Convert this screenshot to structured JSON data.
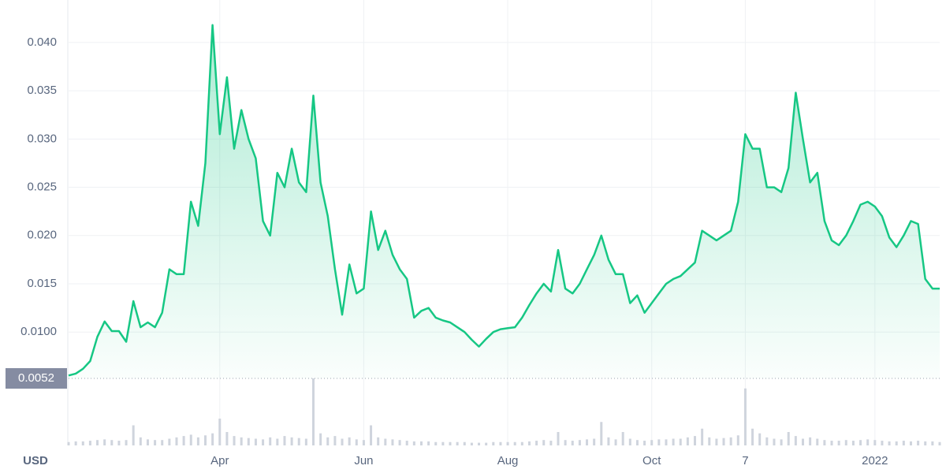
{
  "chart_data": [
    {
      "type": "area",
      "ylabel": "USD",
      "color": "#16c784",
      "categories": [
        null,
        null,
        null,
        null,
        null,
        null,
        null,
        null,
        null,
        null,
        null,
        null,
        null,
        null,
        null,
        null,
        null,
        null,
        null,
        null,
        null,
        "Apr",
        null,
        null,
        null,
        null,
        null,
        null,
        null,
        null,
        null,
        null,
        null,
        null,
        null,
        null,
        null,
        null,
        null,
        null,
        null,
        "Jun",
        null,
        null,
        null,
        null,
        null,
        null,
        null,
        null,
        null,
        null,
        null,
        null,
        null,
        null,
        null,
        null,
        null,
        null,
        null,
        "Aug",
        null,
        null,
        null,
        null,
        null,
        null,
        null,
        null,
        null,
        null,
        null,
        null,
        null,
        null,
        null,
        null,
        null,
        null,
        null,
        "Oct",
        null,
        null,
        null,
        null,
        null,
        null,
        null,
        null,
        null,
        null,
        null,
        null,
        "7",
        null,
        null,
        null,
        null,
        null,
        null,
        null,
        null,
        null,
        null,
        null,
        null,
        null,
        null,
        null,
        null,
        null,
        "2022",
        null,
        null,
        null,
        null,
        null,
        null,
        null,
        null,
        null
      ],
      "values": [
        0.0055,
        0.0057,
        0.0062,
        0.007,
        0.0095,
        0.0111,
        0.0101,
        0.0101,
        0.009,
        0.0132,
        0.0105,
        0.011,
        0.0105,
        0.012,
        0.0165,
        0.016,
        0.016,
        0.0235,
        0.021,
        0.0275,
        0.0418,
        0.0305,
        0.0364,
        0.029,
        0.033,
        0.03,
        0.028,
        0.0215,
        0.02,
        0.0265,
        0.025,
        0.029,
        0.0255,
        0.0245,
        0.0345,
        0.0255,
        0.022,
        0.0165,
        0.0118,
        0.017,
        0.014,
        0.0145,
        0.0225,
        0.0185,
        0.0205,
        0.018,
        0.0165,
        0.0155,
        0.0115,
        0.0122,
        0.0125,
        0.0115,
        0.0112,
        0.011,
        0.0105,
        0.01,
        0.0092,
        0.0085,
        0.0093,
        0.01,
        0.0103,
        0.0104,
        0.0105,
        0.0115,
        0.0128,
        0.014,
        0.015,
        0.0142,
        0.0185,
        0.0145,
        0.014,
        0.015,
        0.0165,
        0.018,
        0.02,
        0.0175,
        0.016,
        0.016,
        0.013,
        0.0138,
        0.012,
        0.013,
        0.014,
        0.015,
        0.0155,
        0.0158,
        0.0165,
        0.0172,
        0.0205,
        0.02,
        0.0195,
        0.02,
        0.0205,
        0.0235,
        0.0305,
        0.029,
        0.029,
        0.025,
        0.025,
        0.0245,
        0.027,
        0.0348,
        0.03,
        0.0255,
        0.0265,
        0.0215,
        0.0195,
        0.019,
        0.02,
        0.0215,
        0.0232,
        0.0235,
        0.023,
        0.022,
        0.0198,
        0.0188,
        0.02,
        0.0215,
        0.0212,
        0.0155,
        0.0145,
        0.0145
      ],
      "ylim": [
        0.0052,
        0.0444
      ],
      "yticks": [
        0.0052,
        {
          "value": 0.01,
          "label": "0.0100"
        },
        0.015,
        {
          "value": 0.02,
          "label": "0.020"
        },
        0.025,
        {
          "value": 0.03,
          "label": "0.030"
        },
        0.035,
        {
          "value": 0.04,
          "label": "0.040"
        }
      ],
      "grid": true
    },
    {
      "type": "bar",
      "color": "#cfd4dd",
      "values": [
        5,
        6,
        6,
        7,
        8,
        9,
        8,
        7,
        8,
        30,
        12,
        9,
        8,
        8,
        10,
        12,
        14,
        16,
        12,
        15,
        18,
        40,
        20,
        14,
        12,
        11,
        10,
        9,
        12,
        10,
        14,
        12,
        11,
        10,
        100,
        18,
        12,
        14,
        10,
        12,
        9,
        8,
        30,
        12,
        10,
        9,
        8,
        7,
        6,
        6,
        6,
        5,
        5,
        5,
        5,
        5,
        4,
        4,
        4,
        5,
        5,
        5,
        5,
        5,
        6,
        7,
        8,
        7,
        20,
        8,
        7,
        8,
        9,
        10,
        35,
        12,
        9,
        20,
        10,
        8,
        7,
        8,
        9,
        9,
        10,
        10,
        12,
        14,
        25,
        12,
        10,
        11,
        12,
        15,
        85,
        25,
        18,
        12,
        10,
        9,
        20,
        14,
        10,
        12,
        10,
        8,
        7,
        7,
        8,
        7,
        8,
        9,
        8,
        7,
        6,
        6,
        7,
        6,
        7,
        6,
        6,
        5
      ],
      "ylim": [
        0,
        100
      ]
    }
  ]
}
